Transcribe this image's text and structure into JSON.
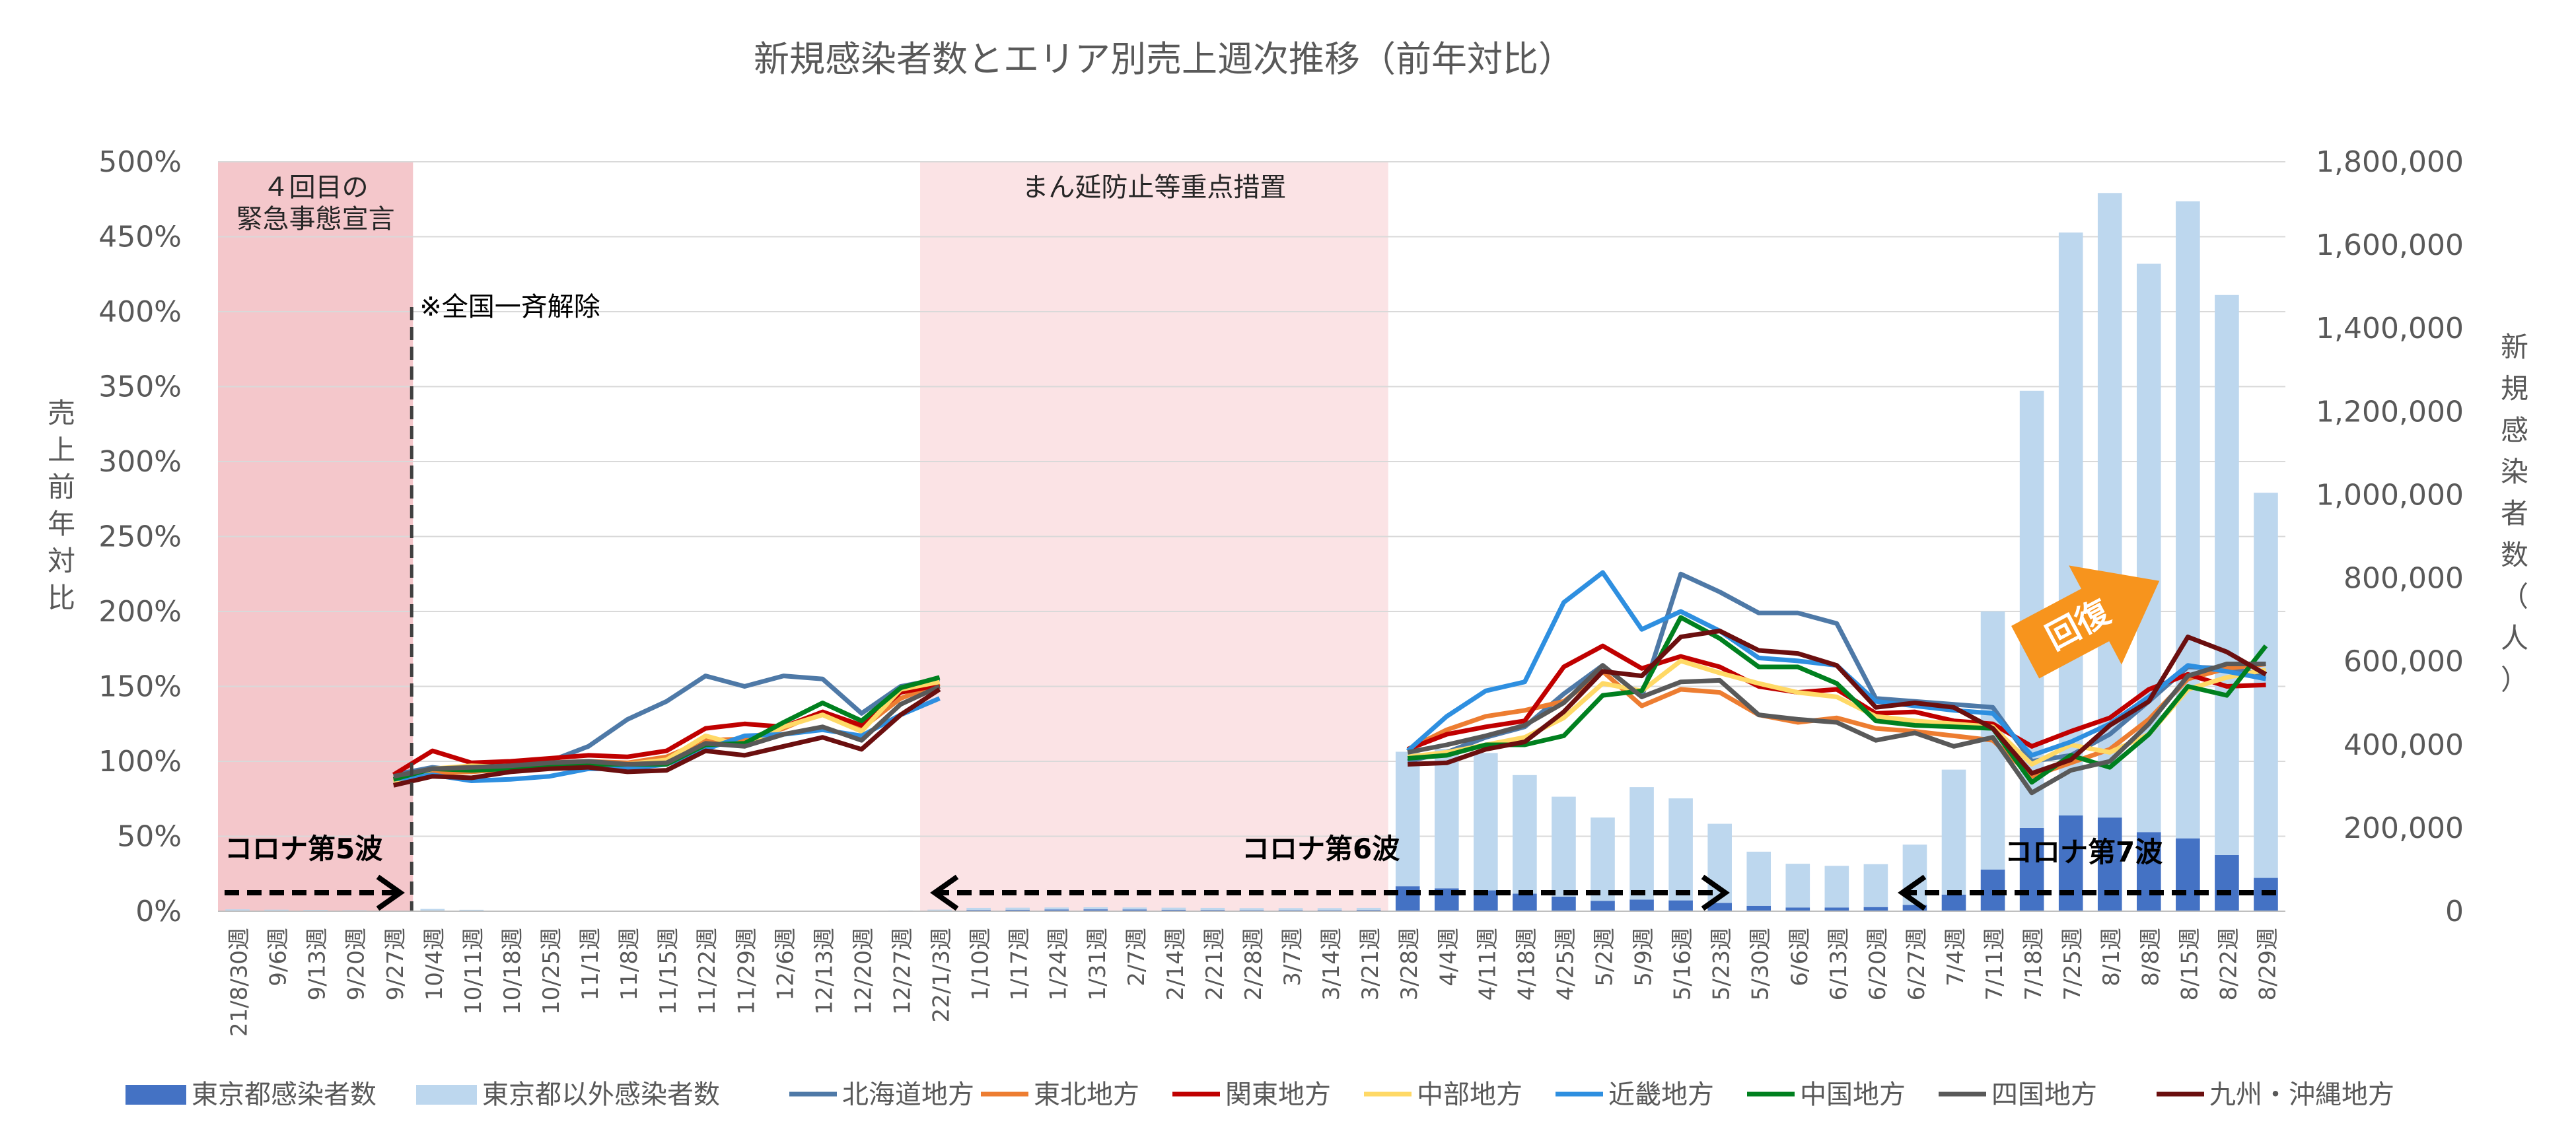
{
  "chart_data": {
    "type": "bar+line",
    "title": "新規感染者数とエリア別売上週次推移（前年対比）",
    "ylabel_left": "売上前年対比",
    "ylabel_right": "新規感染者数（人）",
    "y_left": {
      "min": 0,
      "max": 500,
      "ticks": [
        "0%",
        "50%",
        "100%",
        "150%",
        "200%",
        "250%",
        "300%",
        "350%",
        "400%",
        "450%",
        "500%"
      ]
    },
    "y_right": {
      "min": 0,
      "max": 1800000,
      "ticks": [
        "0",
        "200,000",
        "400,000",
        "600,000",
        "800,000",
        "1,000,000",
        "1,200,000",
        "1,400,000",
        "1,600,000",
        "1,800,000"
      ]
    },
    "categories": [
      "21/8/30週",
      "9/6週",
      "9/13週",
      "9/20週",
      "9/27週",
      "10/4週",
      "10/11週",
      "10/18週",
      "10/25週",
      "11/1週",
      "11/8週",
      "11/15週",
      "11/22週",
      "11/29週",
      "12/6週",
      "12/13週",
      "12/20週",
      "12/27週",
      "22/1/3週",
      "1/10週",
      "1/17週",
      "1/24週",
      "1/31週",
      "2/7週",
      "2/14週",
      "2/21週",
      "2/28週",
      "3/7週",
      "3/14週",
      "3/21週",
      "3/28週",
      "4/4週",
      "4/11週",
      "4/18週",
      "4/25週",
      "5/2週",
      "5/9週",
      "5/16週",
      "5/23週",
      "5/30週",
      "6/6週",
      "6/13週",
      "6/20週",
      "6/27週",
      "7/4週",
      "7/11週",
      "7/18週",
      "7/25週",
      "8/1週",
      "8/8週",
      "8/15週",
      "8/22週",
      "8/29週"
    ],
    "bar_series": [
      {
        "name": "東京都感染者数",
        "color": "#4472c4",
        "values": [
          1500,
          1200,
          1000,
          800,
          600,
          500,
          400,
          300,
          300,
          300,
          300,
          300,
          300,
          300,
          300,
          300,
          300,
          400,
          800,
          3000,
          3500,
          4000,
          4500,
          4000,
          3500,
          3000,
          2500,
          2500,
          2500,
          3000,
          60000,
          55000,
          50000,
          42000,
          35000,
          25000,
          28000,
          26000,
          20000,
          13000,
          9000,
          9000,
          10000,
          15000,
          40000,
          100000,
          200000,
          230000,
          225000,
          190000,
          175000,
          135000,
          80000
        ]
      },
      {
        "name": "東京都以外感染者数",
        "color": "#bdd7ee",
        "values": [
          3000,
          2500,
          2000,
          1500,
          1000,
          5000,
          3000,
          500,
          500,
          500,
          500,
          500,
          500,
          500,
          500,
          500,
          500,
          1500,
          3000,
          5000,
          5000,
          5000,
          5000,
          5000,
          5000,
          5000,
          5000,
          5000,
          5000,
          5000,
          323000,
          335000,
          330000,
          285000,
          240000,
          200000,
          270000,
          245000,
          190000,
          130000,
          105000,
          100000,
          103000,
          145000,
          300000,
          620000,
          1050000,
          1400000,
          1500000,
          1365000,
          1530000,
          1345000,
          925000
        ]
      }
    ],
    "line_series": [
      {
        "name": "北海道地方",
        "color": "#4e79a7",
        "values": [
          null,
          null,
          null,
          null,
          91,
          96,
          93,
          97,
          100,
          110,
          128,
          140,
          157,
          150,
          157,
          155,
          132,
          150,
          155,
          null,
          null,
          null,
          null,
          null,
          null,
          null,
          null,
          null,
          null,
          null,
          100,
          106,
          116,
          123,
          145,
          164,
          143,
          225,
          213,
          199,
          199,
          192,
          142,
          140,
          138,
          136,
          100,
          104,
          118,
          140,
          163,
          162,
          158
        ]
      },
      {
        "name": "東北地方",
        "color": "#ed7d31",
        "values": [
          null,
          null,
          null,
          null,
          87,
          92,
          93,
          95,
          99,
          100,
          99,
          103,
          114,
          115,
          122,
          133,
          122,
          142,
          152,
          null,
          null,
          null,
          null,
          null,
          null,
          null,
          null,
          null,
          null,
          null,
          108,
          121,
          130,
          134,
          140,
          160,
          137,
          148,
          146,
          131,
          126,
          129,
          122,
          120,
          117,
          114,
          90,
          99,
          108,
          128,
          155,
          162,
          165
        ]
      },
      {
        "name": "関東地方",
        "color": "#c00000",
        "values": [
          null,
          null,
          null,
          null,
          91,
          107,
          99,
          100,
          102,
          104,
          103,
          107,
          122,
          125,
          123,
          133,
          124,
          146,
          151,
          null,
          null,
          null,
          null,
          null,
          null,
          null,
          null,
          null,
          null,
          null,
          108,
          118,
          123,
          127,
          163,
          177,
          162,
          170,
          163,
          150,
          146,
          148,
          132,
          133,
          127,
          125,
          110,
          120,
          129,
          148,
          158,
          150,
          151
        ]
      },
      {
        "name": "中部地方",
        "color": "#ffd966",
        "values": [
          null,
          null,
          null,
          null,
          86,
          95,
          97,
          96,
          97,
          98,
          98,
          101,
          117,
          110,
          123,
          131,
          120,
          148,
          153,
          null,
          null,
          null,
          null,
          null,
          null,
          null,
          null,
          null,
          null,
          null,
          103,
          106,
          111,
          116,
          129,
          152,
          147,
          167,
          159,
          152,
          146,
          143,
          130,
          127,
          125,
          123,
          98,
          111,
          106,
          118,
          148,
          156,
          161
        ]
      },
      {
        "name": "近畿地方",
        "color": "#2e8fe0",
        "values": [
          null,
          null,
          null,
          null,
          88,
          91,
          87,
          88,
          90,
          95,
          95,
          98,
          108,
          117,
          118,
          121,
          117,
          131,
          142,
          null,
          null,
          null,
          null,
          null,
          null,
          null,
          null,
          null,
          null,
          null,
          107,
          130,
          147,
          153,
          206,
          226,
          188,
          200,
          187,
          169,
          167,
          164,
          140,
          137,
          134,
          132,
          104,
          113,
          125,
          143,
          164,
          160,
          155
        ]
      },
      {
        "name": "中国地方",
        "color": "#00801f",
        "values": [
          null,
          null,
          null,
          null,
          88,
          95,
          94,
          95,
          97,
          98,
          98,
          98,
          111,
          112,
          126,
          139,
          127,
          149,
          156,
          null,
          null,
          null,
          null,
          null,
          null,
          null,
          null,
          null,
          null,
          null,
          102,
          104,
          111,
          111,
          117,
          144,
          147,
          196,
          182,
          163,
          163,
          152,
          127,
          124,
          123,
          122,
          86,
          104,
          96,
          118,
          150,
          144,
          177
        ]
      },
      {
        "name": "四国地方",
        "color": "#595959",
        "values": [
          null,
          null,
          null,
          null,
          90,
          95,
          96,
          97,
          99,
          100,
          98,
          99,
          112,
          110,
          118,
          123,
          114,
          138,
          150,
          null,
          null,
          null,
          null,
          null,
          null,
          null,
          null,
          null,
          null,
          null,
          106,
          111,
          117,
          124,
          139,
          164,
          143,
          153,
          154,
          131,
          128,
          126,
          114,
          119,
          110,
          116,
          79,
          94,
          100,
          125,
          157,
          165,
          165
        ]
      },
      {
        "name": "九州・沖縄地方",
        "color": "#6b0f0f",
        "values": [
          null,
          null,
          null,
          null,
          84,
          90,
          89,
          93,
          95,
          96,
          93,
          94,
          107,
          104,
          110,
          116,
          108,
          131,
          148,
          null,
          null,
          null,
          null,
          null,
          null,
          null,
          null,
          null,
          null,
          null,
          98,
          99,
          108,
          113,
          133,
          160,
          157,
          183,
          187,
          174,
          172,
          164,
          136,
          139,
          136,
          122,
          92,
          101,
          124,
          140,
          183,
          173,
          158
        ]
      }
    ],
    "regions": [
      {
        "label_line1": "４回目の",
        "label_line2": "緊急事態宣言",
        "from": 0,
        "to": 4,
        "color": "#f4c7cb"
      },
      {
        "label_line1": "まん延防止等重点措置",
        "label_line2": "",
        "from": 18,
        "to": 29,
        "color": "#fbe3e5"
      }
    ],
    "annotations": {
      "lift": "※全国一斉解除",
      "wave5": "コロナ第5波",
      "wave6": "コロナ第6波",
      "wave7": "コロナ第7波",
      "recovery": "回復"
    }
  }
}
